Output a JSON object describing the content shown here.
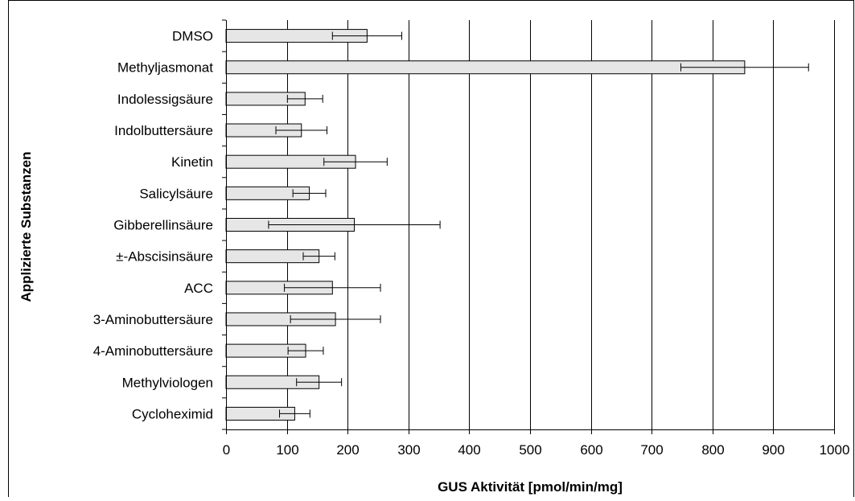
{
  "chart_data": {
    "type": "bar",
    "orientation": "horizontal",
    "categories": [
      "DMSO",
      "Methyljasmonat",
      "Indolessigsäure",
      "Indolbuttersäure",
      "Kinetin",
      "Salicylsäure",
      "Gibberellinsäure",
      "±-Abscisinsäure",
      "ACC",
      "3-Aminobuttersäure",
      "4-Aminobuttersäure",
      "Methylviologen",
      "Cycloheximid"
    ],
    "values": [
      232,
      853,
      130,
      124,
      213,
      137,
      211,
      153,
      175,
      180,
      131,
      153,
      113
    ],
    "errors": [
      57,
      105,
      29,
      42,
      52,
      27,
      141,
      26,
      79,
      74,
      29,
      37,
      25
    ],
    "xlabel": "GUS Aktivität [pmol/min/mg]",
    "ylabel": "Applizierte Substanzen",
    "xlim": [
      0,
      1000
    ],
    "xticks": [
      0,
      100,
      200,
      300,
      400,
      500,
      600,
      700,
      800,
      900,
      1000
    ],
    "grid": "vertical",
    "legend": "none",
    "colors": {
      "bar_fill": "#e6e6e6",
      "bar_stroke": "#000000",
      "grid": "#000000"
    }
  }
}
